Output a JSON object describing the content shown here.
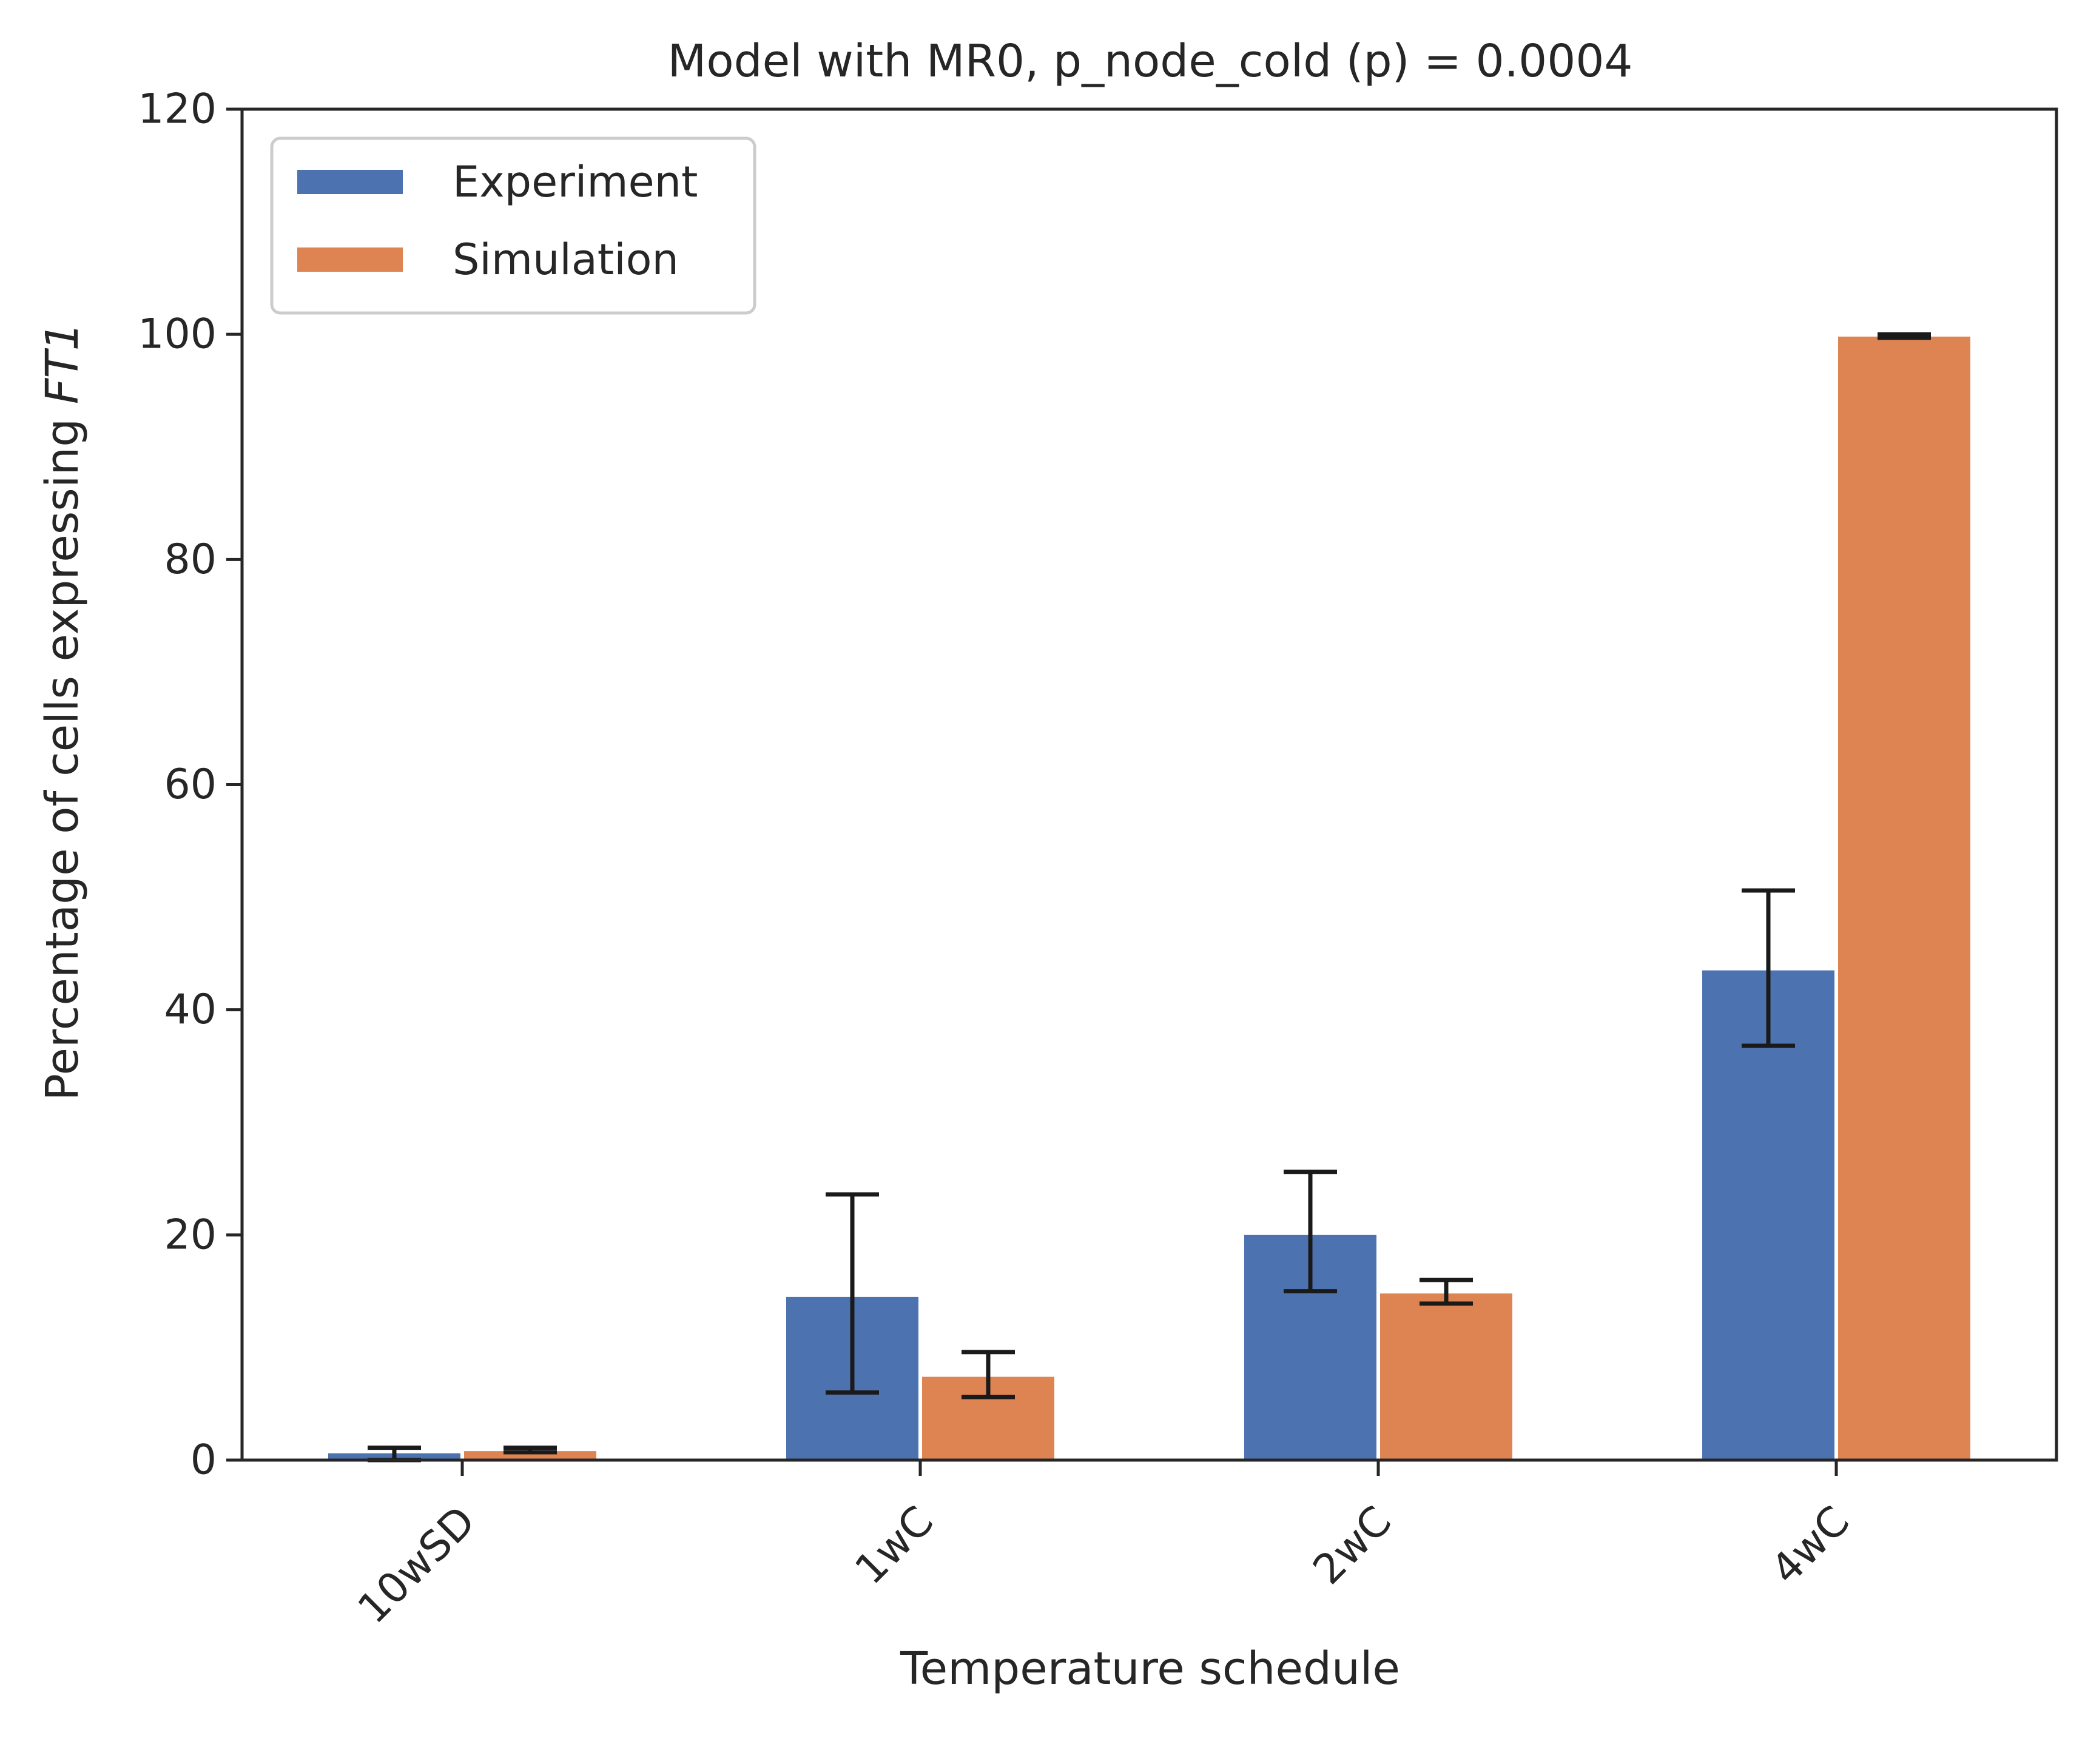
{
  "chart_data": {
    "type": "bar",
    "title": "Model with MR0, p_node_cold (p) = 0.0004",
    "xlabel": "Temperature schedule",
    "ylabel_prefix": "Percentage of cells expressing ",
    "ylabel_italic": "FT1",
    "categories": [
      "10wSD",
      "1wC",
      "2wC",
      "4wC"
    ],
    "ylim": [
      0,
      120
    ],
    "yticks": [
      "0",
      "20",
      "40",
      "60",
      "80",
      "100",
      "120"
    ],
    "grid": false,
    "legend_position": "upper-left",
    "series": [
      {
        "name": "Experiment",
        "color": "#4c72b0",
        "values": [
          0.6,
          14.5,
          20.0,
          43.5
        ],
        "err_low": [
          0.0,
          6.0,
          15.0,
          36.8
        ],
        "err_high": [
          1.1,
          23.6,
          25.6,
          50.6
        ]
      },
      {
        "name": "Simulation",
        "color": "#dd8452",
        "values": [
          0.8,
          7.4,
          14.8,
          99.8
        ],
        "err_low": [
          0.7,
          5.6,
          13.9,
          99.7
        ],
        "err_high": [
          1.1,
          9.6,
          16.0,
          100.0
        ]
      }
    ],
    "error_bar_color": "#1a1a1a"
  }
}
